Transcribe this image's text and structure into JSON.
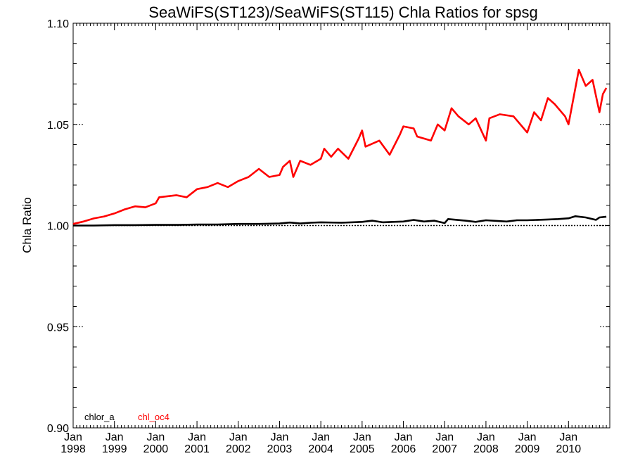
{
  "chart_data": {
    "type": "line",
    "title": "SeaWiFS(ST123)/SeaWiFS(ST115)  Chla Ratios for spsg",
    "xlabel": "",
    "ylabel": "Chla Ratio",
    "ylim": [
      0.9,
      1.1
    ],
    "xlim": [
      "1998-01",
      "2010-12"
    ],
    "y_ticks": [
      {
        "value": 0.9,
        "label": "0.90"
      },
      {
        "value": 0.95,
        "label": "0.95"
      },
      {
        "value": 1.0,
        "label": "1.00"
      },
      {
        "value": 1.05,
        "label": "1.05"
      },
      {
        "value": 1.1,
        "label": "1.10"
      }
    ],
    "x_ticks": [
      {
        "value": "1998-01",
        "month": "Jan",
        "year": "1998"
      },
      {
        "value": "1999-01",
        "month": "Jan",
        "year": "1999"
      },
      {
        "value": "2000-01",
        "month": "Jan",
        "year": "2000"
      },
      {
        "value": "2001-01",
        "month": "Jan",
        "year": "2001"
      },
      {
        "value": "2002-01",
        "month": "Jan",
        "year": "2002"
      },
      {
        "value": "2003-01",
        "month": "Jan",
        "year": "2003"
      },
      {
        "value": "2004-01",
        "month": "Jan",
        "year": "2004"
      },
      {
        "value": "2005-01",
        "month": "Jan",
        "year": "2005"
      },
      {
        "value": "2006-01",
        "month": "Jan",
        "year": "2006"
      },
      {
        "value": "2007-01",
        "month": "Jan",
        "year": "2007"
      },
      {
        "value": "2008-01",
        "month": "Jan",
        "year": "2008"
      },
      {
        "value": "2009-01",
        "month": "Jan",
        "year": "2009"
      },
      {
        "value": "2010-01",
        "month": "Jan",
        "year": "2010"
      }
    ],
    "reference_line": {
      "y": 1.0,
      "style": "dotted"
    },
    "series": [
      {
        "name": "chlor_a",
        "color": "#000000",
        "points": [
          [
            "1998-01",
            1.0
          ],
          [
            "1998-07",
            1.0
          ],
          [
            "1999-01",
            1.0002
          ],
          [
            "1999-07",
            1.0002
          ],
          [
            "2000-01",
            1.0003
          ],
          [
            "2000-07",
            1.0003
          ],
          [
            "2001-01",
            1.0005
          ],
          [
            "2001-07",
            1.0005
          ],
          [
            "2002-01",
            1.0008
          ],
          [
            "2002-07",
            1.0008
          ],
          [
            "2003-01",
            1.001
          ],
          [
            "2003-04",
            1.0015
          ],
          [
            "2003-07",
            1.001
          ],
          [
            "2003-10",
            1.0014
          ],
          [
            "2004-01",
            1.0016
          ],
          [
            "2004-07",
            1.0014
          ],
          [
            "2005-01",
            1.0018
          ],
          [
            "2005-04",
            1.0024
          ],
          [
            "2005-07",
            1.0016
          ],
          [
            "2005-10",
            1.0018
          ],
          [
            "2006-01",
            1.002
          ],
          [
            "2006-04",
            1.0028
          ],
          [
            "2006-07",
            1.002
          ],
          [
            "2006-10",
            1.0024
          ],
          [
            "2007-01",
            1.0012
          ],
          [
            "2007-02",
            1.0032
          ],
          [
            "2007-07",
            1.0024
          ],
          [
            "2007-10",
            1.0018
          ],
          [
            "2008-01",
            1.0026
          ],
          [
            "2008-07",
            1.002
          ],
          [
            "2008-10",
            1.0026
          ],
          [
            "2009-01",
            1.0026
          ],
          [
            "2009-07",
            1.003
          ],
          [
            "2009-10",
            1.0032
          ],
          [
            "2010-01",
            1.0036
          ],
          [
            "2010-03",
            1.0046
          ],
          [
            "2010-06",
            1.004
          ],
          [
            "2010-09",
            1.0028
          ],
          [
            "2010-10",
            1.004
          ],
          [
            "2010-12",
            1.0044
          ]
        ]
      },
      {
        "name": "chl_oc4",
        "color": "#ff0000",
        "points": [
          [
            "1998-01",
            1.0008
          ],
          [
            "1998-04",
            1.002
          ],
          [
            "1998-07",
            1.0035
          ],
          [
            "1998-10",
            1.0045
          ],
          [
            "1999-01",
            1.006
          ],
          [
            "1999-04",
            1.008
          ],
          [
            "1999-07",
            1.0095
          ],
          [
            "1999-10",
            1.009
          ],
          [
            "2000-01",
            1.011
          ],
          [
            "2000-02",
            1.014
          ],
          [
            "2000-07",
            1.015
          ],
          [
            "2000-10",
            1.014
          ],
          [
            "2001-01",
            1.018
          ],
          [
            "2001-04",
            1.019
          ],
          [
            "2001-07",
            1.021
          ],
          [
            "2001-10",
            1.019
          ],
          [
            "2002-01",
            1.022
          ],
          [
            "2002-04",
            1.024
          ],
          [
            "2002-07",
            1.028
          ],
          [
            "2002-10",
            1.024
          ],
          [
            "2003-01",
            1.025
          ],
          [
            "2003-02",
            1.029
          ],
          [
            "2003-04",
            1.032
          ],
          [
            "2003-05",
            1.024
          ],
          [
            "2003-07",
            1.032
          ],
          [
            "2003-10",
            1.03
          ],
          [
            "2004-01",
            1.033
          ],
          [
            "2004-02",
            1.038
          ],
          [
            "2004-04",
            1.034
          ],
          [
            "2004-06",
            1.038
          ],
          [
            "2004-09",
            1.033
          ],
          [
            "2004-12",
            1.043
          ],
          [
            "2005-01",
            1.047
          ],
          [
            "2005-02",
            1.039
          ],
          [
            "2005-06",
            1.042
          ],
          [
            "2005-09",
            1.035
          ],
          [
            "2005-12",
            1.045
          ],
          [
            "2006-01",
            1.049
          ],
          [
            "2006-04",
            1.048
          ],
          [
            "2006-05",
            1.044
          ],
          [
            "2006-09",
            1.042
          ],
          [
            "2006-11",
            1.05
          ],
          [
            "2007-01",
            1.047
          ],
          [
            "2007-03",
            1.058
          ],
          [
            "2007-05",
            1.054
          ],
          [
            "2007-08",
            1.05
          ],
          [
            "2007-10",
            1.053
          ],
          [
            "2008-01",
            1.042
          ],
          [
            "2008-02",
            1.053
          ],
          [
            "2008-05",
            1.055
          ],
          [
            "2008-09",
            1.054
          ],
          [
            "2008-12",
            1.048
          ],
          [
            "2009-01",
            1.046
          ],
          [
            "2009-03",
            1.056
          ],
          [
            "2009-05",
            1.052
          ],
          [
            "2009-07",
            1.063
          ],
          [
            "2009-09",
            1.06
          ],
          [
            "2009-12",
            1.054
          ],
          [
            "2010-01",
            1.05
          ],
          [
            "2010-03",
            1.068
          ],
          [
            "2010-04",
            1.077
          ],
          [
            "2010-06",
            1.069
          ],
          [
            "2010-08",
            1.072
          ],
          [
            "2010-10",
            1.056
          ],
          [
            "2010-11",
            1.065
          ],
          [
            "2010-12",
            1.068
          ]
        ]
      }
    ],
    "legend": {
      "placement": "bottom-left",
      "items": [
        "chlor_a",
        "chl_oc4"
      ]
    }
  }
}
